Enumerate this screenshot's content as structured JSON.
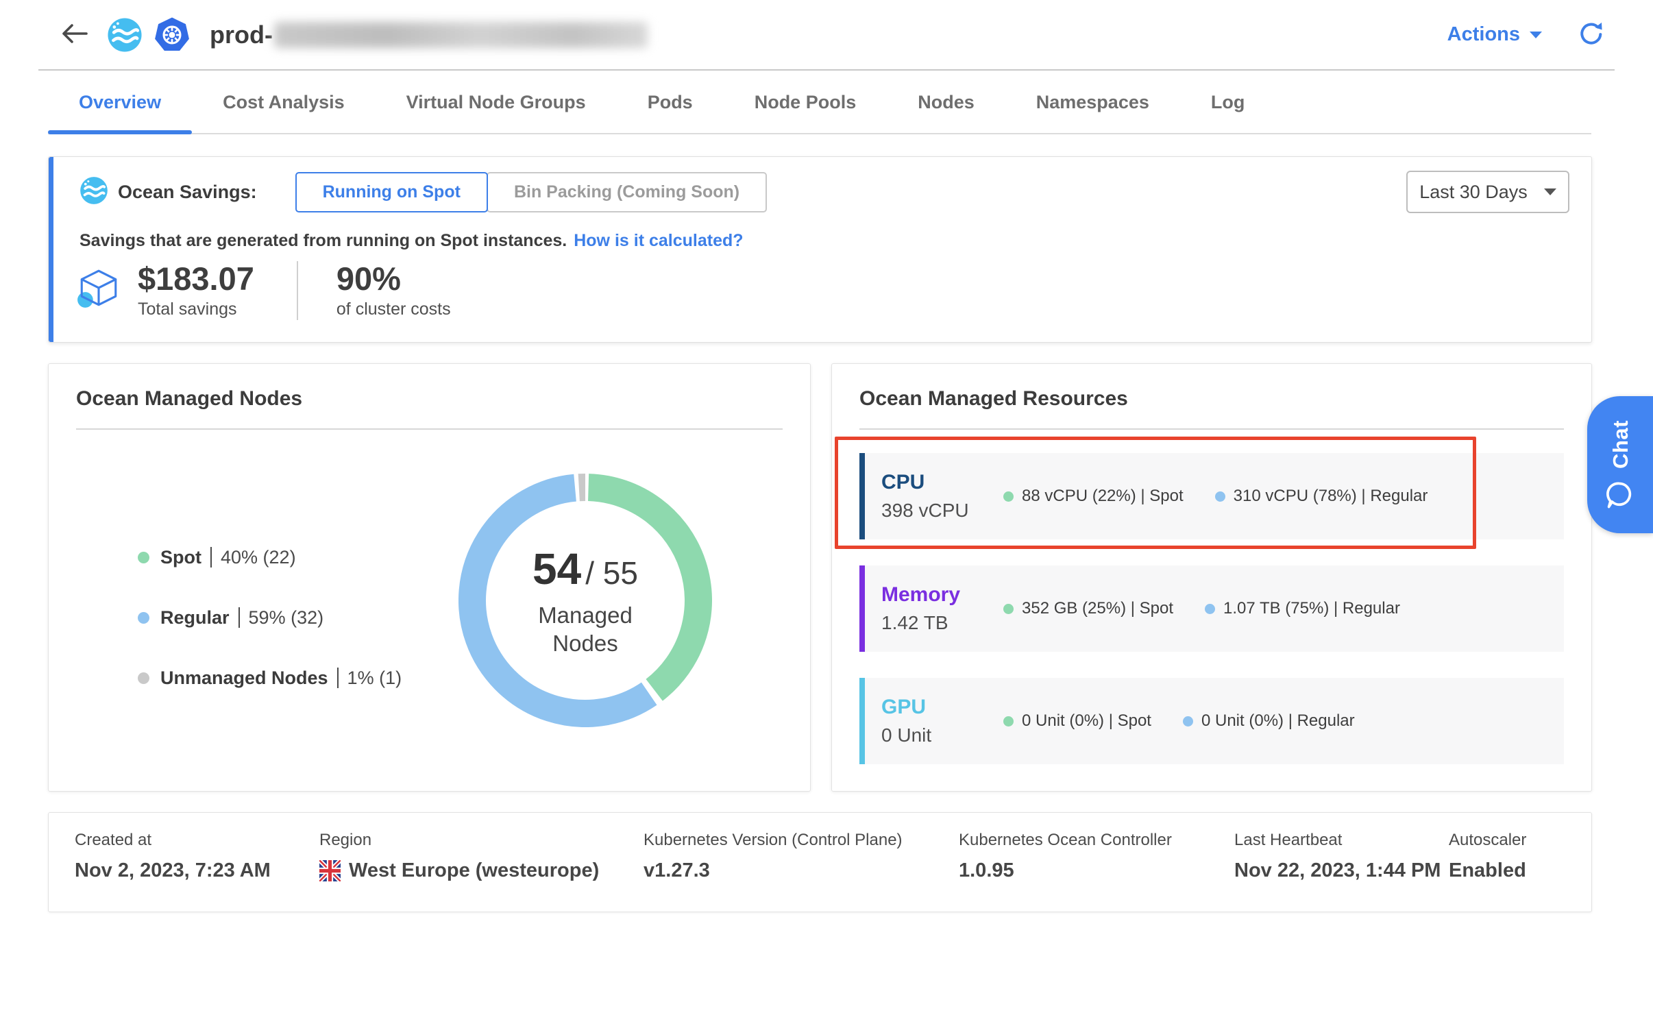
{
  "header": {
    "title_prefix": "prod-",
    "actions_label": "Actions"
  },
  "tabs": [
    {
      "label": "Overview",
      "active": true
    },
    {
      "label": "Cost Analysis",
      "active": false
    },
    {
      "label": "Virtual Node Groups",
      "active": false
    },
    {
      "label": "Pods",
      "active": false
    },
    {
      "label": "Node Pools",
      "active": false
    },
    {
      "label": "Nodes",
      "active": false
    },
    {
      "label": "Namespaces",
      "active": false
    },
    {
      "label": "Log",
      "active": false
    }
  ],
  "savings": {
    "label": "Ocean Savings:",
    "toggle_active": "Running on Spot",
    "toggle_disabled": "Bin Packing (Coming Soon)",
    "period": "Last 30 Days",
    "description": "Savings that are generated from running on Spot instances.",
    "link": "How is it calculated?",
    "total_value": "$183.07",
    "total_label": "Total savings",
    "percent_value": "90%",
    "percent_label": "of cluster costs",
    "accent_color": "#3d7fe8"
  },
  "managed_nodes": {
    "title": "Ocean Managed Nodes",
    "legend": [
      {
        "label": "Spot",
        "value": "40% (22)",
        "color": "#8ed9ae"
      },
      {
        "label": "Regular",
        "value": "59% (32)",
        "color": "#8fc3f0"
      },
      {
        "label": "Unmanaged Nodes",
        "value": "1% (1)",
        "color": "#c9c9c9"
      }
    ],
    "center_value": "54",
    "center_total": "/ 55",
    "center_label": "Managed Nodes"
  },
  "chart_data": {
    "type": "pie",
    "donut": true,
    "title": "Ocean Managed Nodes",
    "labels": [
      "Spot",
      "Regular",
      "Unmanaged Nodes"
    ],
    "values": [
      22,
      32,
      1
    ],
    "percents": [
      40,
      59,
      1
    ],
    "colors": [
      "#8ed9ae",
      "#8fc3f0",
      "#c9c9c9"
    ],
    "center_text": "54/ 55 Managed Nodes",
    "legend_position": "left"
  },
  "managed_resources": {
    "title": "Ocean Managed Resources",
    "rows": [
      {
        "name": "CPU",
        "total": "398 vCPU",
        "accent": "#1b4d7e",
        "stats": [
          {
            "dot": "#8ed9ae",
            "text": "88 vCPU  (22%)  | Spot"
          },
          {
            "dot": "#8fc3f0",
            "text": "310 vCPU  (78%)  | Regular"
          }
        ],
        "highlighted": true
      },
      {
        "name": "Memory",
        "total": "1.42 TB",
        "accent": "#7a2fe0",
        "stats": [
          {
            "dot": "#8ed9ae",
            "text": "352 GB  (25%)  | Spot"
          },
          {
            "dot": "#8fc3f0",
            "text": "1.07 TB  (75%)  | Regular"
          }
        ],
        "highlighted": false
      },
      {
        "name": "GPU",
        "total": "0 Unit",
        "accent": "#57c4e5",
        "stats": [
          {
            "dot": "#8ed9ae",
            "text": "0 Unit  (0%)  | Spot"
          },
          {
            "dot": "#8fc3f0",
            "text": "0 Unit  (0%)  | Regular"
          }
        ],
        "highlighted": false
      }
    ],
    "highlight_color": "#e8432d"
  },
  "footer": {
    "items": [
      {
        "label": "Created at",
        "value": "Nov 2, 2023, 7:23 AM",
        "flag": false
      },
      {
        "label": "Region",
        "value": "West Europe (westeurope)",
        "flag": true
      },
      {
        "label": "Kubernetes Version (Control Plane)",
        "value": "v1.27.3",
        "flag": false
      },
      {
        "label": "Kubernetes Ocean Controller",
        "value": "1.0.95",
        "flag": false
      },
      {
        "label": "Last Heartbeat",
        "value": "Nov 22, 2023, 1:44 PM",
        "flag": false
      },
      {
        "label": "Autoscaler",
        "value": "Enabled",
        "flag": false
      }
    ]
  },
  "chat": {
    "label": "Chat"
  }
}
